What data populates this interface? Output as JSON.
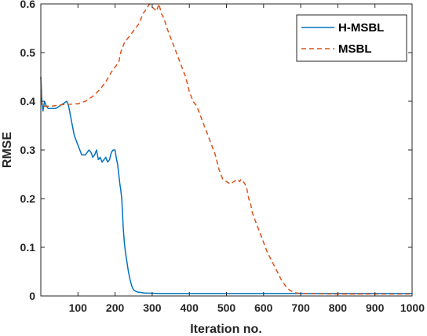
{
  "chart_data": {
    "type": "line",
    "title": "",
    "xlabel": "Iteration no.",
    "ylabel": "RMSE",
    "xlim": [
      0,
      1000
    ],
    "ylim": [
      0,
      0.6
    ],
    "xticks": [
      100,
      200,
      300,
      400,
      500,
      600,
      700,
      800,
      900,
      1000
    ],
    "xtick_labels": [
      "100",
      "200",
      "300",
      "400",
      "500",
      "600",
      "700",
      "800",
      "900",
      "1000"
    ],
    "yticks": [
      0,
      0.1,
      0.2,
      0.3,
      0.4,
      0.5,
      0.6
    ],
    "ytick_labels": [
      "0",
      "0.1",
      "0.2",
      "0.3",
      "0.4",
      "0.5",
      "0.6"
    ],
    "grid": false,
    "legend_position": "top-right",
    "series": [
      {
        "name": "H-MSBL",
        "color": "#0072BD",
        "style": "solid",
        "points": [
          [
            0,
            0.45
          ],
          [
            3,
            0.4
          ],
          [
            6,
            0.38
          ],
          [
            10,
            0.4
          ],
          [
            15,
            0.39
          ],
          [
            20,
            0.385
          ],
          [
            30,
            0.385
          ],
          [
            40,
            0.385
          ],
          [
            50,
            0.39
          ],
          [
            60,
            0.395
          ],
          [
            70,
            0.4
          ],
          [
            75,
            0.39
          ],
          [
            80,
            0.37
          ],
          [
            85,
            0.35
          ],
          [
            90,
            0.33
          ],
          [
            95,
            0.32
          ],
          [
            100,
            0.31
          ],
          [
            105,
            0.3
          ],
          [
            110,
            0.29
          ],
          [
            120,
            0.29
          ],
          [
            125,
            0.295
          ],
          [
            130,
            0.3
          ],
          [
            135,
            0.295
          ],
          [
            140,
            0.285
          ],
          [
            145,
            0.29
          ],
          [
            150,
            0.3
          ],
          [
            155,
            0.28
          ],
          [
            160,
            0.285
          ],
          [
            165,
            0.275
          ],
          [
            170,
            0.28
          ],
          [
            175,
            0.285
          ],
          [
            180,
            0.275
          ],
          [
            185,
            0.28
          ],
          [
            190,
            0.295
          ],
          [
            195,
            0.3
          ],
          [
            200,
            0.3
          ],
          [
            203,
            0.285
          ],
          [
            207,
            0.27
          ],
          [
            210,
            0.25
          ],
          [
            213,
            0.23
          ],
          [
            215,
            0.22
          ],
          [
            218,
            0.2
          ],
          [
            220,
            0.17
          ],
          [
            222,
            0.14
          ],
          [
            225,
            0.11
          ],
          [
            228,
            0.09
          ],
          [
            232,
            0.07
          ],
          [
            236,
            0.05
          ],
          [
            240,
            0.035
          ],
          [
            245,
            0.02
          ],
          [
            250,
            0.012
          ],
          [
            260,
            0.008
          ],
          [
            280,
            0.006
          ],
          [
            320,
            0.005
          ],
          [
            400,
            0.005
          ],
          [
            500,
            0.005
          ],
          [
            700,
            0.005
          ],
          [
            1000,
            0.005
          ]
        ]
      },
      {
        "name": "MSBL",
        "color": "#D95319",
        "style": "dashed",
        "points": [
          [
            0,
            0.45
          ],
          [
            3,
            0.39
          ],
          [
            10,
            0.39
          ],
          [
            30,
            0.39
          ],
          [
            60,
            0.393
          ],
          [
            100,
            0.395
          ],
          [
            120,
            0.4
          ],
          [
            140,
            0.41
          ],
          [
            160,
            0.425
          ],
          [
            175,
            0.44
          ],
          [
            190,
            0.46
          ],
          [
            200,
            0.47
          ],
          [
            210,
            0.48
          ],
          [
            215,
            0.5
          ],
          [
            225,
            0.52
          ],
          [
            235,
            0.53
          ],
          [
            245,
            0.54
          ],
          [
            255,
            0.55
          ],
          [
            265,
            0.56
          ],
          [
            275,
            0.58
          ],
          [
            285,
            0.59
          ],
          [
            292,
            0.6
          ],
          [
            298,
            0.595
          ],
          [
            305,
            0.59
          ],
          [
            312,
            0.585
          ],
          [
            318,
            0.6
          ],
          [
            325,
            0.58
          ],
          [
            332,
            0.57
          ],
          [
            340,
            0.55
          ],
          [
            350,
            0.53
          ],
          [
            360,
            0.51
          ],
          [
            370,
            0.49
          ],
          [
            380,
            0.47
          ],
          [
            390,
            0.45
          ],
          [
            400,
            0.42
          ],
          [
            410,
            0.4
          ],
          [
            420,
            0.39
          ],
          [
            430,
            0.37
          ],
          [
            440,
            0.35
          ],
          [
            450,
            0.33
          ],
          [
            460,
            0.31
          ],
          [
            470,
            0.29
          ],
          [
            480,
            0.26
          ],
          [
            490,
            0.24
          ],
          [
            500,
            0.235
          ],
          [
            510,
            0.23
          ],
          [
            520,
            0.235
          ],
          [
            530,
            0.24
          ],
          [
            535,
            0.235
          ],
          [
            540,
            0.24
          ],
          [
            545,
            0.235
          ],
          [
            550,
            0.23
          ],
          [
            555,
            0.22
          ],
          [
            560,
            0.2
          ],
          [
            565,
            0.19
          ],
          [
            570,
            0.17
          ],
          [
            575,
            0.16
          ],
          [
            580,
            0.15
          ],
          [
            590,
            0.13
          ],
          [
            600,
            0.11
          ],
          [
            610,
            0.09
          ],
          [
            620,
            0.075
          ],
          [
            630,
            0.06
          ],
          [
            640,
            0.045
          ],
          [
            650,
            0.03
          ],
          [
            660,
            0.02
          ],
          [
            670,
            0.012
          ],
          [
            680,
            0.008
          ],
          [
            690,
            0.006
          ],
          [
            700,
            0.005
          ],
          [
            800,
            0.004
          ],
          [
            1000,
            0.004
          ]
        ]
      }
    ]
  }
}
